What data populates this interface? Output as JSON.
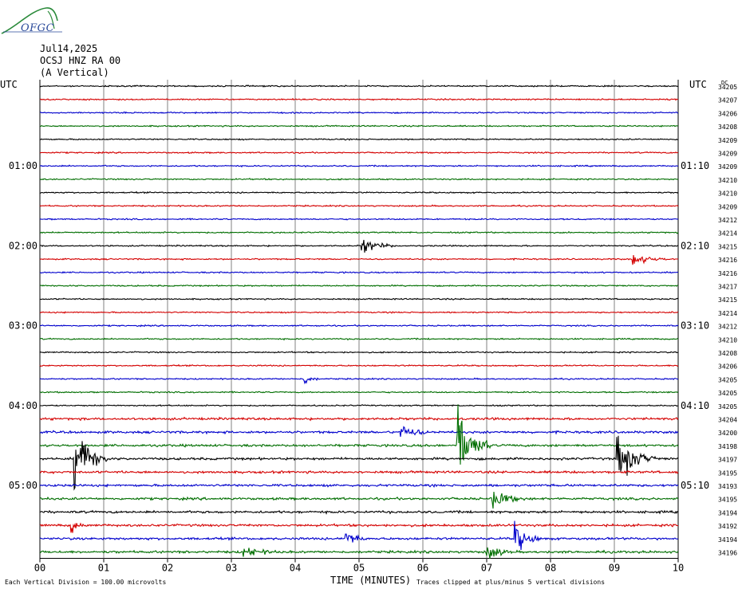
{
  "logo": {
    "text": "OFGC",
    "color": "#2a8a3a",
    "accent": "#2a4a9a"
  },
  "header": {
    "date": "Jul14,2025",
    "station": "OCSJ HNZ RA 00",
    "component": "(A Vertical)"
  },
  "colors": {
    "black": "#000000",
    "red": "#d40000",
    "blue": "#0000cc",
    "green": "#006e00",
    "grid": "#808080"
  },
  "chart_data": {
    "type": "line",
    "left_axis_label": "UTC",
    "right_axis_label": "UTC",
    "right_corner_label": "DC",
    "xlabel": "TIME (MINUTES)",
    "x_ticks": [
      "00",
      "01",
      "02",
      "03",
      "04",
      "05",
      "06",
      "07",
      "08",
      "09",
      "10"
    ],
    "xlim": [
      0,
      10
    ],
    "left_hour_labels": [
      {
        "row": 6,
        "label": "01:00"
      },
      {
        "row": 12,
        "label": "02:00"
      },
      {
        "row": 18,
        "label": "03:00"
      },
      {
        "row": 24,
        "label": "04:00"
      },
      {
        "row": 30,
        "label": "05:00"
      }
    ],
    "right_hour_labels": [
      {
        "row": 0,
        "label": "UTC"
      },
      {
        "row": 6,
        "label": "01:10"
      },
      {
        "row": 12,
        "label": "02:10"
      },
      {
        "row": 18,
        "label": "03:10"
      },
      {
        "row": 24,
        "label": "04:10"
      },
      {
        "row": 30,
        "label": "05:10"
      }
    ],
    "trace_color_cycle": [
      "black",
      "red",
      "blue",
      "green"
    ],
    "dc_offsets": [
      "34205",
      "34207",
      "34206",
      "34208",
      "34209",
      "34209",
      "34209",
      "34210",
      "34210",
      "34209",
      "34212",
      "34214",
      "34215",
      "34216",
      "34216",
      "34217",
      "34215",
      "34214",
      "34212",
      "34210",
      "34208",
      "34206",
      "34205",
      "34205",
      "34205",
      "34204",
      "34200",
      "34198",
      "34197",
      "34195",
      "34193",
      "34195",
      "34194",
      "34192",
      "34194",
      "34196"
    ],
    "events": [
      {
        "row": 12,
        "minute": 5.05,
        "amplitude": 0.45,
        "duration": 0.5
      },
      {
        "row": 13,
        "minute": 9.3,
        "amplitude": 0.3,
        "duration": 0.6
      },
      {
        "row": 22,
        "minute": 4.15,
        "amplitude": 0.35,
        "duration": 0.2
      },
      {
        "row": 26,
        "minute": 5.65,
        "amplitude": 0.4,
        "duration": 0.5
      },
      {
        "row": 27,
        "minute": 6.55,
        "amplitude": 2.0,
        "duration": 0.5
      },
      {
        "row": 28,
        "minute": 0.55,
        "amplitude": 2.0,
        "duration": 0.5
      },
      {
        "row": 28,
        "minute": 9.05,
        "amplitude": 1.3,
        "duration": 0.6
      },
      {
        "row": 31,
        "minute": 7.1,
        "amplitude": 0.5,
        "duration": 0.5
      },
      {
        "row": 33,
        "minute": 0.5,
        "amplitude": 0.4,
        "duration": 0.2
      },
      {
        "row": 34,
        "minute": 4.8,
        "amplitude": 0.5,
        "duration": 0.3
      },
      {
        "row": 34,
        "minute": 7.45,
        "amplitude": 0.8,
        "duration": 0.4
      },
      {
        "row": 35,
        "minute": 7.0,
        "amplitude": 0.45,
        "duration": 0.4
      },
      {
        "row": 35,
        "minute": 3.2,
        "amplitude": 0.3,
        "duration": 0.5
      }
    ],
    "caption_left": "Each Vertical Division = 100.00 microvolts",
    "caption_right": "Traces clipped at plus/minus 5 vertical divisions"
  }
}
